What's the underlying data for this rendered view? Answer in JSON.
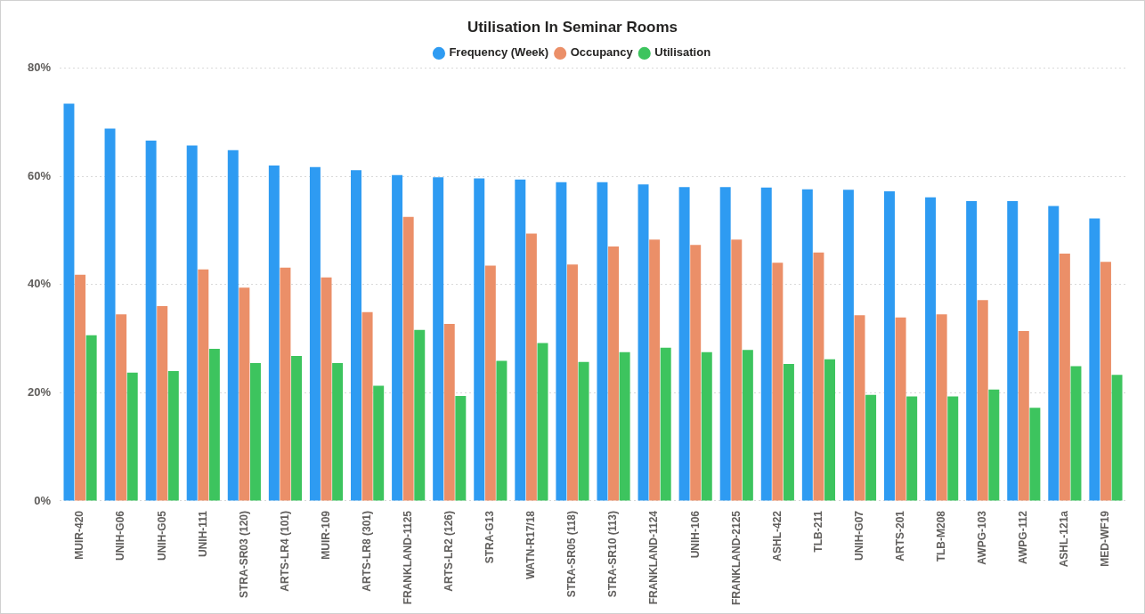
{
  "chart_data": {
    "type": "bar",
    "title": "Utilisation In Seminar Rooms",
    "categories": [
      "MUIR-420",
      "UNIH-G06",
      "UNIH-G05",
      "UNIH-111",
      "STRA-SR03 (120)",
      "ARTS-LR4 (101)",
      "MUIR-109",
      "ARTS-LR8 (301)",
      "FRANKLAND-1125",
      "ARTS-LR2 (126)",
      "STRA-G13",
      "WATN-R17/18",
      "STRA-SR05 (118)",
      "STRA-SR10 (113)",
      "FRANKLAND-1124",
      "UNIH-106",
      "FRANKLAND-2125",
      "ASHL-422",
      "TLB-211",
      "UNIH-G07",
      "ARTS-201",
      "TLB-M208",
      "AWPG-103",
      "AWPG-112",
      "ASHL-121a",
      "MED-WF19"
    ],
    "series": [
      {
        "name": "Frequency (Week)",
        "color": "#2e9bf2",
        "values": [
          73.4,
          68.8,
          66.6,
          65.7,
          64.8,
          62.0,
          61.7,
          61.1,
          60.2,
          59.8,
          59.6,
          59.4,
          58.9,
          58.9,
          58.5,
          58.0,
          58.0,
          57.9,
          57.6,
          57.5,
          57.2,
          56.1,
          55.4,
          55.4,
          54.5,
          52.2
        ]
      },
      {
        "name": "Occupancy",
        "color": "#eb8f68",
        "values": [
          41.8,
          34.5,
          36.0,
          42.8,
          39.4,
          43.1,
          41.3,
          34.9,
          52.5,
          32.7,
          43.5,
          49.4,
          43.7,
          47.0,
          48.3,
          47.3,
          48.3,
          44.0,
          45.9,
          34.3,
          33.9,
          34.5,
          37.1,
          31.4,
          45.7,
          44.2
        ]
      },
      {
        "name": "Utilisation",
        "color": "#3dc45e",
        "values": [
          30.6,
          23.7,
          24.0,
          28.1,
          25.5,
          26.8,
          25.5,
          21.3,
          31.6,
          19.4,
          25.9,
          29.2,
          25.7,
          27.5,
          28.3,
          27.5,
          27.9,
          25.3,
          26.2,
          19.6,
          19.3,
          19.3,
          20.6,
          17.2,
          24.9,
          23.3
        ]
      }
    ],
    "ylim": [
      0,
      80
    ],
    "yticks": [
      {
        "value": 0,
        "label": "0%"
      },
      {
        "value": 20,
        "label": "20%"
      },
      {
        "value": 40,
        "label": "40%"
      },
      {
        "value": 60,
        "label": "60%"
      },
      {
        "value": 80,
        "label": "80%"
      }
    ],
    "grid": true,
    "legend": "top"
  }
}
